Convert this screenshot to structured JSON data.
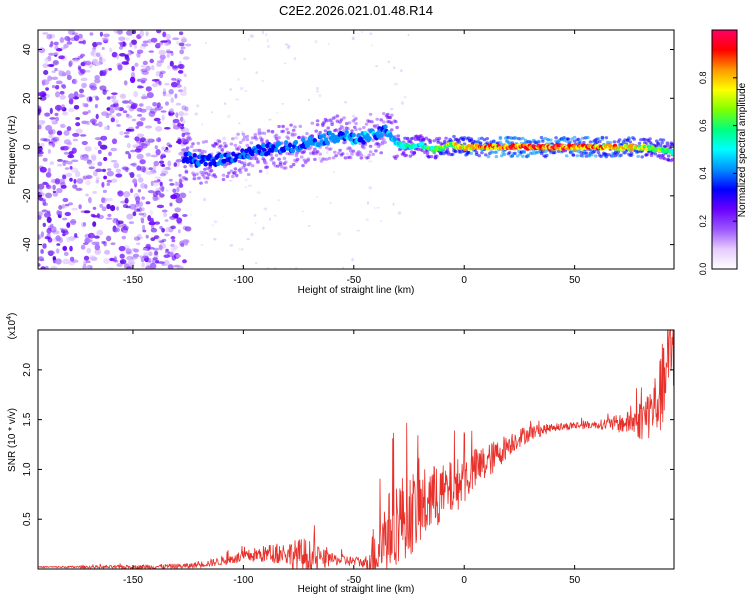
{
  "chart_data": [
    {
      "type": "heatmap",
      "title": "C2E2.2026.021.01.48.R14",
      "xlabel": "Height of straight line (km)",
      "ylabel": "Frequency (Hz)",
      "xlim": [
        -193,
        95
      ],
      "ylim": [
        -50,
        48
      ],
      "xticks": [
        -150,
        -100,
        -50,
        0,
        50
      ],
      "yticks": [
        -40,
        -20,
        0,
        20,
        40
      ],
      "grid": false,
      "colorbar": {
        "label": "Normalized spectral amplitude",
        "range": [
          0,
          1
        ],
        "ticks": [
          "0.0",
          "0.2",
          "0.4",
          "0.6",
          "0.8"
        ],
        "colors": [
          "#ffffff",
          "#e6ccff",
          "#9a55ff",
          "#6a00ff",
          "#0000ff",
          "#0090ff",
          "#00ffff",
          "#00ff80",
          "#80ff00",
          "#ffff00",
          "#ff9900",
          "#ff0000",
          "#ff0066"
        ]
      },
      "noise_region_x": [
        -193,
        -125
      ],
      "ridge": {
        "x": [
          -127,
          -120,
          -110,
          -100,
          -90,
          -80,
          -70,
          -60,
          -55,
          -50,
          -45,
          -40,
          -35,
          -30,
          -25,
          -20,
          -15,
          -10,
          -5,
          0,
          10,
          20,
          30,
          40,
          50,
          60,
          70,
          80,
          90,
          95
        ],
        "freq": [
          -4,
          -6,
          -5,
          -3,
          -1,
          0,
          2,
          4,
          5,
          3,
          4,
          5,
          7,
          1,
          0,
          1,
          -1,
          0,
          1,
          0,
          0,
          0,
          0,
          0,
          0,
          0,
          0,
          0,
          -1,
          -2
        ],
        "amplitude": [
          0.35,
          0.4,
          0.4,
          0.4,
          0.42,
          0.42,
          0.45,
          0.45,
          0.45,
          0.45,
          0.45,
          0.45,
          0.45,
          0.55,
          0.6,
          0.6,
          0.65,
          0.7,
          0.75,
          0.8,
          0.9,
          0.95,
          0.95,
          0.95,
          0.95,
          0.9,
          0.85,
          0.8,
          0.7,
          0.6
        ]
      }
    },
    {
      "type": "line",
      "xlabel": "Height of straight line (km)",
      "ylabel": "SNR (10 * v/v)",
      "yunit_label": "(x10^4)",
      "xlim": [
        -193,
        95
      ],
      "ylim": [
        0,
        2.4
      ],
      "xticks": [
        -150,
        -100,
        -50,
        0,
        50
      ],
      "yticks": [
        "0.5",
        "1.0",
        "1.5",
        "2.0"
      ],
      "ytick_values": [
        0.5,
        1.0,
        1.5,
        2.0
      ],
      "grid": false,
      "color": "#e8302a",
      "trend": {
        "x": [
          -193,
          -150,
          -125,
          -115,
          -105,
          -95,
          -85,
          -78,
          -72,
          -65,
          -55,
          -48,
          -44,
          -40,
          -35,
          -30,
          -25,
          -20,
          -15,
          -10,
          -5,
          0,
          5,
          10,
          15,
          20,
          25,
          30,
          40,
          50,
          60,
          70,
          75,
          80,
          85,
          88,
          90,
          92,
          94
        ],
        "y": [
          0.02,
          0.02,
          0.03,
          0.06,
          0.1,
          0.14,
          0.16,
          0.15,
          0.12,
          0.1,
          0.09,
          0.07,
          0.06,
          0.2,
          0.35,
          0.5,
          0.55,
          0.6,
          0.7,
          0.75,
          0.82,
          0.9,
          1.0,
          1.07,
          1.15,
          1.25,
          1.32,
          1.37,
          1.42,
          1.44,
          1.45,
          1.46,
          1.47,
          1.5,
          1.6,
          1.7,
          1.8,
          2.0,
          2.25
        ]
      },
      "noise_amplitude": {
        "x": [
          -193,
          -120,
          -100,
          -80,
          -72,
          -60,
          -45,
          -40,
          -30,
          -20,
          -10,
          0,
          20,
          40,
          60,
          75,
          85,
          94
        ],
        "amp": [
          0.005,
          0.03,
          0.06,
          0.12,
          0.2,
          0.06,
          0.05,
          0.35,
          0.45,
          0.4,
          0.3,
          0.25,
          0.12,
          0.04,
          0.04,
          0.12,
          0.3,
          0.5
        ]
      }
    }
  ]
}
